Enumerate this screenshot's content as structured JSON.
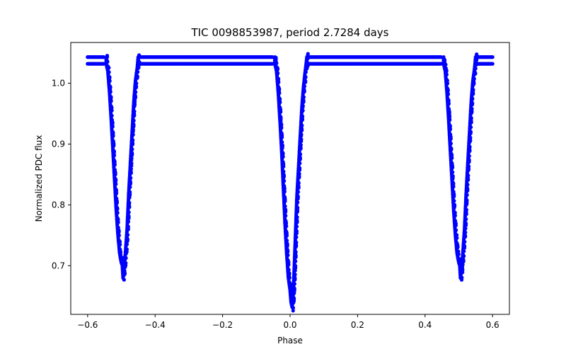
{
  "chart_data": {
    "type": "scatter",
    "title": "TIC 0098853987, period 2.7284 days",
    "xlabel": "Phase",
    "ylabel": "Normalized PDC flux",
    "xlim": [
      -0.65,
      0.65
    ],
    "ylim": [
      0.62,
      1.067
    ],
    "xticks": [
      -0.6,
      -0.4,
      -0.2,
      0.0,
      0.2,
      0.4,
      0.6
    ],
    "xtick_labels": [
      "−0.6",
      "−0.4",
      "−0.2",
      "0.0",
      "0.2",
      "0.4",
      "0.6"
    ],
    "yticks": [
      0.7,
      0.8,
      0.9,
      1.0
    ],
    "ytick_labels": [
      "0.7",
      "0.8",
      "0.9",
      "1.0"
    ],
    "grid": false,
    "marker_color": "#0000ff",
    "series": [
      {
        "name": "PDC flux",
        "description": "Phase-folded eclipsing binary light curve; two flat baseline bands near 1.043 and 1.032 with repeated eclipse dips at phase -0.5, 0.0 and 0.5",
        "baseline_upper": 1.043,
        "baseline_lower": 1.032,
        "eclipses": [
          {
            "center": -0.5,
            "depth_min": 0.678
          },
          {
            "center": 0.0,
            "depth_min": 0.632
          },
          {
            "center": 0.5,
            "depth_min": 0.678
          }
        ],
        "points": [
          [
            -0.6,
            1.043
          ],
          [
            -0.6,
            1.032
          ],
          [
            -0.58,
            1.043
          ],
          [
            -0.58,
            1.032
          ],
          [
            -0.56,
            1.043
          ],
          [
            -0.56,
            1.032
          ],
          [
            -0.545,
            1.043
          ],
          [
            -0.545,
            1.032
          ],
          [
            -0.54,
            1.02
          ],
          [
            -0.535,
            0.985
          ],
          [
            -0.53,
            0.94
          ],
          [
            -0.525,
            0.89
          ],
          [
            -0.52,
            0.84
          ],
          [
            -0.515,
            0.79
          ],
          [
            -0.51,
            0.75
          ],
          [
            -0.505,
            0.72
          ],
          [
            -0.5,
            0.705
          ],
          [
            -0.497,
            0.7
          ],
          [
            -0.495,
            0.68
          ],
          [
            -0.492,
            0.695
          ],
          [
            -0.488,
            0.72
          ],
          [
            -0.483,
            0.76
          ],
          [
            -0.478,
            0.82
          ],
          [
            -0.473,
            0.87
          ],
          [
            -0.468,
            0.92
          ],
          [
            -0.463,
            0.97
          ],
          [
            -0.458,
            1.005
          ],
          [
            -0.453,
            1.025
          ],
          [
            -0.45,
            1.043
          ],
          [
            -0.45,
            1.032
          ],
          [
            -0.42,
            1.043
          ],
          [
            -0.42,
            1.032
          ],
          [
            -0.38,
            1.043
          ],
          [
            -0.38,
            1.032
          ],
          [
            -0.34,
            1.043
          ],
          [
            -0.34,
            1.032
          ],
          [
            -0.3,
            1.043
          ],
          [
            -0.3,
            1.032
          ],
          [
            -0.26,
            1.043
          ],
          [
            -0.26,
            1.032
          ],
          [
            -0.22,
            1.043
          ],
          [
            -0.22,
            1.032
          ],
          [
            -0.18,
            1.043
          ],
          [
            -0.18,
            1.032
          ],
          [
            -0.14,
            1.043
          ],
          [
            -0.14,
            1.032
          ],
          [
            -0.1,
            1.043
          ],
          [
            -0.1,
            1.032
          ],
          [
            -0.06,
            1.043
          ],
          [
            -0.06,
            1.032
          ],
          [
            -0.045,
            1.043
          ],
          [
            -0.045,
            1.032
          ],
          [
            -0.04,
            1.02
          ],
          [
            -0.035,
            0.985
          ],
          [
            -0.03,
            0.94
          ],
          [
            -0.025,
            0.89
          ],
          [
            -0.02,
            0.83
          ],
          [
            -0.015,
            0.77
          ],
          [
            -0.01,
            0.72
          ],
          [
            -0.005,
            0.68
          ],
          [
            0.0,
            0.66
          ],
          [
            0.003,
            0.64
          ],
          [
            0.006,
            0.632
          ],
          [
            0.009,
            0.65
          ],
          [
            0.012,
            0.69
          ],
          [
            0.016,
            0.75
          ],
          [
            0.02,
            0.81
          ],
          [
            0.025,
            0.86
          ],
          [
            0.03,
            0.91
          ],
          [
            0.035,
            0.96
          ],
          [
            0.04,
            0.995
          ],
          [
            0.045,
            1.02
          ],
          [
            0.05,
            1.043
          ],
          [
            0.05,
            1.032
          ],
          [
            0.08,
            1.043
          ],
          [
            0.08,
            1.032
          ],
          [
            0.12,
            1.043
          ],
          [
            0.12,
            1.032
          ],
          [
            0.16,
            1.043
          ],
          [
            0.16,
            1.032
          ],
          [
            0.2,
            1.043
          ],
          [
            0.2,
            1.032
          ],
          [
            0.24,
            1.043
          ],
          [
            0.24,
            1.032
          ],
          [
            0.28,
            1.043
          ],
          [
            0.28,
            1.032
          ],
          [
            0.32,
            1.043
          ],
          [
            0.32,
            1.032
          ],
          [
            0.36,
            1.043
          ],
          [
            0.36,
            1.032
          ],
          [
            0.4,
            1.043
          ],
          [
            0.4,
            1.032
          ],
          [
            0.44,
            1.043
          ],
          [
            0.44,
            1.032
          ],
          [
            0.455,
            1.043
          ],
          [
            0.455,
            1.032
          ],
          [
            0.46,
            1.02
          ],
          [
            0.465,
            0.985
          ],
          [
            0.47,
            0.94
          ],
          [
            0.475,
            0.89
          ],
          [
            0.48,
            0.84
          ],
          [
            0.485,
            0.79
          ],
          [
            0.49,
            0.75
          ],
          [
            0.495,
            0.72
          ],
          [
            0.5,
            0.705
          ],
          [
            0.503,
            0.7
          ],
          [
            0.505,
            0.68
          ],
          [
            0.508,
            0.695
          ],
          [
            0.512,
            0.72
          ],
          [
            0.517,
            0.76
          ],
          [
            0.522,
            0.82
          ],
          [
            0.527,
            0.87
          ],
          [
            0.532,
            0.92
          ],
          [
            0.537,
            0.97
          ],
          [
            0.542,
            1.005
          ],
          [
            0.547,
            1.025
          ],
          [
            0.55,
            1.043
          ],
          [
            0.55,
            1.032
          ],
          [
            0.575,
            1.043
          ],
          [
            0.575,
            1.032
          ],
          [
            0.6,
            1.043
          ],
          [
            0.6,
            1.032
          ]
        ]
      }
    ]
  }
}
